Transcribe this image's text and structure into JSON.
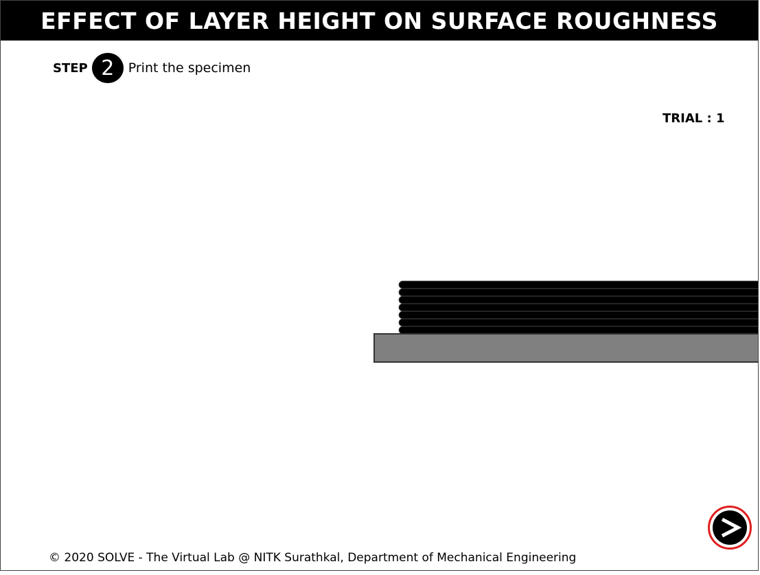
{
  "header": {
    "title": "EFFECT OF LAYER HEIGHT ON SURFACE ROUGHNESS"
  },
  "step": {
    "label": "STEP",
    "number": "2",
    "description": "Print the specimen"
  },
  "trial": {
    "text": "TRIAL : 1"
  },
  "simulation": {
    "layer_count": 7,
    "layer_color": "#000000",
    "bed_color": "#808080"
  },
  "footer": {
    "text": "© 2020 SOLVE - The Virtual Lab @ NITK Surathkal, Department of Mechanical Engineering"
  },
  "controls": {
    "next_icon": "next-arrow-icon",
    "accent_color": "#e01e1e"
  }
}
